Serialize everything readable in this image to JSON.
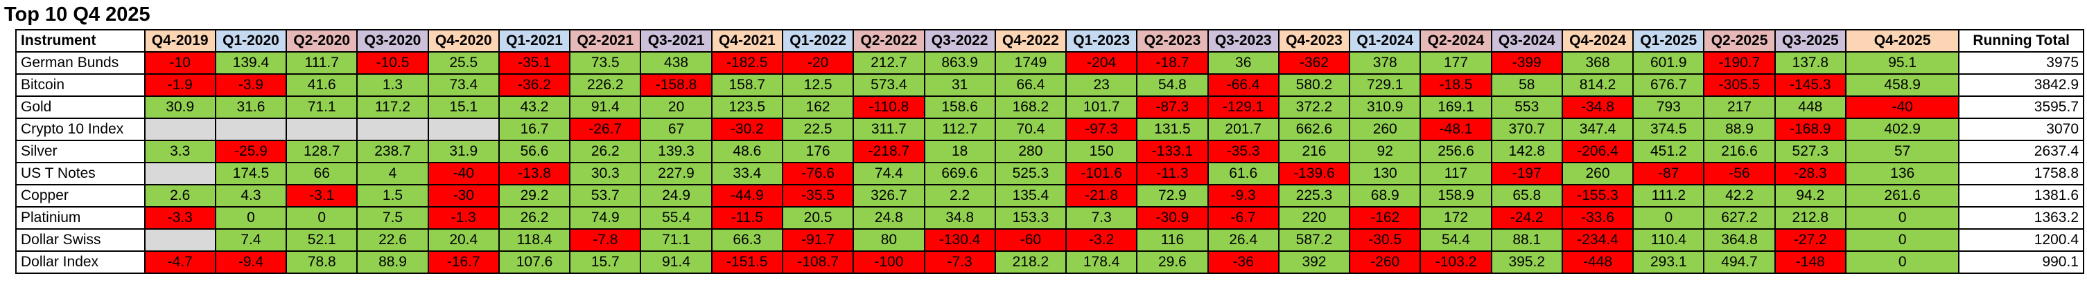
{
  "title": "Top 10  Q4 2025",
  "colors": {
    "positive": "#92d050",
    "negative": "#ff0000",
    "empty": "#d9d9d9"
  },
  "columns": [
    {
      "label": "Instrument",
      "bg": "#ffffff"
    },
    {
      "label": "Q4-2019",
      "bg": "#fcd5b4"
    },
    {
      "label": "Q1-2020",
      "bg": "#c5d9f1"
    },
    {
      "label": "Q2-2020",
      "bg": "#e6b8b7"
    },
    {
      "label": "Q3-2020",
      "bg": "#ccc0da"
    },
    {
      "label": "Q4-2020",
      "bg": "#fcd5b4"
    },
    {
      "label": "Q1-2021",
      "bg": "#c5d9f1"
    },
    {
      "label": "Q2-2021",
      "bg": "#e6b8b7"
    },
    {
      "label": "Q3-2021",
      "bg": "#ccc0da"
    },
    {
      "label": "Q4-2021",
      "bg": "#fcd5b4"
    },
    {
      "label": "Q1-2022",
      "bg": "#c5d9f1"
    },
    {
      "label": "Q2-2022",
      "bg": "#e6b8b7"
    },
    {
      "label": "Q3-2022",
      "bg": "#ccc0da"
    },
    {
      "label": "Q4-2022",
      "bg": "#fcd5b4"
    },
    {
      "label": "Q1-2023",
      "bg": "#c5d9f1"
    },
    {
      "label": "Q2-2023",
      "bg": "#e6b8b7"
    },
    {
      "label": "Q3-2023",
      "bg": "#ccc0da"
    },
    {
      "label": "Q4-2023",
      "bg": "#fcd5b4"
    },
    {
      "label": "Q1-2024",
      "bg": "#c5d9f1"
    },
    {
      "label": "Q2-2024",
      "bg": "#e6b8b7"
    },
    {
      "label": "Q3-2024",
      "bg": "#ccc0da"
    },
    {
      "label": "Q4-2024",
      "bg": "#fcd5b4"
    },
    {
      "label": "Q1-2025",
      "bg": "#c5d9f1"
    },
    {
      "label": "Q2-2025",
      "bg": "#e6b8b7"
    },
    {
      "label": "Q3-2025",
      "bg": "#ccc0da"
    },
    {
      "label": "Q4-2025",
      "bg": "#fcd5b4"
    },
    {
      "label": "Running Total",
      "bg": "#ffffff"
    }
  ],
  "rows": [
    {
      "instrument": "German Bunds",
      "values": [
        "-10",
        "139.4",
        "111.7",
        "-10.5",
        "25.5",
        "-35.1",
        "73.5",
        "438",
        "-182.5",
        "-20",
        "212.7",
        "863.9",
        "1749",
        "-204",
        "-18.7",
        "36",
        "-362",
        "378",
        "177",
        "-399",
        "368",
        "601.9",
        "-190.7",
        "137.8",
        "95.1"
      ],
      "total": "3975"
    },
    {
      "instrument": "Bitcoin",
      "values": [
        "-1.9",
        "-3.9",
        "41.6",
        "1.3",
        "73.4",
        "-36.2",
        "226.2",
        "-158.8",
        "158.7",
        "12.5",
        "573.4",
        "31",
        "66.4",
        "23",
        "54.8",
        "-66.4",
        "580.2",
        "729.1",
        "-18.5",
        "58",
        "814.2",
        "676.7",
        "-305.5",
        "-145.3",
        "458.9"
      ],
      "total": "3842.9"
    },
    {
      "instrument": "Gold",
      "values": [
        "30.9",
        "31.6",
        "71.1",
        "117.2",
        "15.1",
        "43.2",
        "91.4",
        "20",
        "123.5",
        "162",
        "-110.8",
        "158.6",
        "168.2",
        "101.7",
        "-87.3",
        "-129.1",
        "372.2",
        "310.9",
        "169.1",
        "553",
        "-34.8",
        "793",
        "217",
        "448",
        "-40"
      ],
      "total": "3595.7"
    },
    {
      "instrument": "Crypto 10 Index",
      "values": [
        "",
        "",
        "",
        "",
        "",
        "16.7",
        "-26.7",
        "67",
        "-30.2",
        "22.5",
        "311.7",
        "112.7",
        "70.4",
        "-97.3",
        "131.5",
        "201.7",
        "662.6",
        "260",
        "-48.1",
        "370.7",
        "347.4",
        "374.5",
        "88.9",
        "-168.9",
        "402.9"
      ],
      "total": "3070"
    },
    {
      "instrument": "Silver",
      "values": [
        "3.3",
        "-25.9",
        "128.7",
        "238.7",
        "31.9",
        "56.6",
        "26.2",
        "139.3",
        "48.6",
        "176",
        "-218.7",
        "18",
        "280",
        "150",
        "-133.1",
        "-35.3",
        "216",
        "92",
        "256.6",
        "142.8",
        "-206.4",
        "451.2",
        "216.6",
        "527.3",
        "57"
      ],
      "total": "2637.4"
    },
    {
      "instrument": "US T Notes",
      "values": [
        "",
        "174.5",
        "66",
        "4",
        "-40",
        "-13.8",
        "30.3",
        "227.9",
        "33.4",
        "-76.6",
        "74.4",
        "669.6",
        "525.3",
        "-101.6",
        "-11.3",
        "61.6",
        "-139.6",
        "130",
        "117",
        "-197",
        "260",
        "-87",
        "-56",
        "-28.3",
        "136"
      ],
      "total": "1758.8"
    },
    {
      "instrument": "Copper",
      "values": [
        "2.6",
        "4.3",
        "-3.1",
        "1.5",
        "-30",
        "29.2",
        "53.7",
        "24.9",
        "-44.9",
        "-35.5",
        "326.7",
        "2.2",
        "135.4",
        "-21.8",
        "72.9",
        "-9.3",
        "225.3",
        "68.9",
        "158.9",
        "65.8",
        "-155.3",
        "111.2",
        "42.2",
        "94.2",
        "261.6"
      ],
      "total": "1381.6"
    },
    {
      "instrument": "Platinium",
      "values": [
        "-3.3",
        "0",
        "0",
        "7.5",
        "-1.3",
        "26.2",
        "74.9",
        "55.4",
        "-11.5",
        "20.5",
        "24.8",
        "34.8",
        "153.3",
        "7.3",
        "-30.9",
        "-6.7",
        "220",
        "-162",
        "172",
        "-24.2",
        "-33.6",
        "0",
        "627.2",
        "212.8",
        "0"
      ],
      "total": "1363.2"
    },
    {
      "instrument": "Dollar Swiss",
      "values": [
        "",
        "7.4",
        "52.1",
        "22.6",
        "20.4",
        "118.4",
        "-7.8",
        "71.1",
        "66.3",
        "-91.7",
        "80",
        "-130.4",
        "-60",
        "-3.2",
        "116",
        "26.4",
        "587.2",
        "-30.5",
        "54.4",
        "88.1",
        "-234.4",
        "110.4",
        "364.8",
        "-27.2",
        "0"
      ],
      "total": "1200.4"
    },
    {
      "instrument": "Dollar Index",
      "values": [
        "-4.7",
        "-9.4",
        "78.8",
        "88.9",
        "-16.7",
        "107.6",
        "15.7",
        "91.4",
        "-151.5",
        "-108.7",
        "-100",
        "-7.3",
        "218.2",
        "178.4",
        "29.6",
        "-36",
        "392",
        "-260",
        "-103.2",
        "395.2",
        "-448",
        "293.1",
        "494.7",
        "-148",
        "0"
      ],
      "total": "990.1"
    }
  ]
}
